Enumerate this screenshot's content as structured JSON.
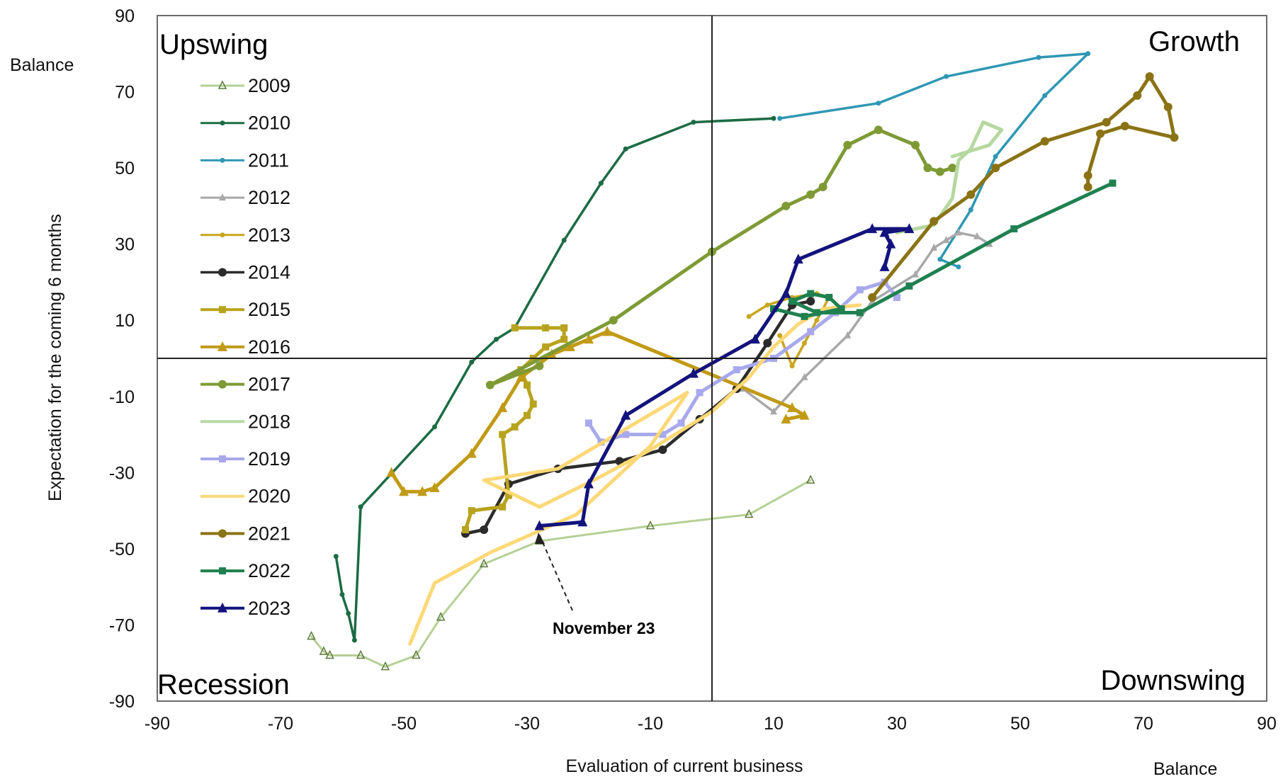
{
  "chart_data": {
    "type": "line",
    "title": "",
    "xlabel": "Evaluation  of current business",
    "ylabel": "Expectation for  the coming 6 months",
    "x_unit_label": "Balance",
    "y_unit_label": "Balance",
    "xlim": [
      -90,
      90
    ],
    "ylim": [
      -90,
      90
    ],
    "xticks": [
      -90,
      -70,
      -50,
      -30,
      -10,
      10,
      30,
      50,
      70,
      90
    ],
    "yticks": [
      90,
      70,
      50,
      30,
      10,
      -10,
      -30,
      -50,
      -70,
      -90
    ],
    "grid": false,
    "reference_lines": {
      "x": 0,
      "y": 0
    },
    "legend_placement": "top-left",
    "quadrants": {
      "top_left": "Upswing",
      "top_right": "Growth",
      "bottom_left": "Recession",
      "bottom_right": "Downswing"
    },
    "annotation": {
      "text": "November 23",
      "x": -28,
      "y": -46
    },
    "series": [
      {
        "name": "2009",
        "color": "#b5cf95",
        "marker": "triangle-open",
        "width": 3,
        "points": [
          [
            -65,
            -73
          ],
          [
            -63,
            -77
          ],
          [
            -62,
            -78
          ],
          [
            -57,
            -78
          ],
          [
            -53,
            -81
          ],
          [
            -48,
            -78
          ],
          [
            -44,
            -68
          ],
          [
            -37,
            -54
          ],
          [
            -28,
            -48
          ],
          [
            -10,
            -44
          ],
          [
            6,
            -41
          ],
          [
            16,
            -32
          ]
        ]
      },
      {
        "name": "2010",
        "color": "#1c6b45",
        "marker": "dot-small",
        "width": 3.5,
        "points": [
          [
            -61,
            -52
          ],
          [
            -60,
            -62
          ],
          [
            -59,
            -67
          ],
          [
            -58,
            -74
          ],
          [
            -57,
            -39
          ],
          [
            -45,
            -18
          ],
          [
            -39,
            -1
          ],
          [
            -35,
            5
          ],
          [
            -32,
            8
          ],
          [
            -24,
            31
          ],
          [
            -18,
            46
          ],
          [
            -14,
            55
          ],
          [
            -3,
            62
          ],
          [
            10,
            63
          ]
        ]
      },
      {
        "name": "2011",
        "color": "#2f97b3",
        "marker": "dot-small",
        "width": 3.5,
        "points": [
          [
            11,
            63
          ],
          [
            27,
            67
          ],
          [
            38,
            74
          ],
          [
            53,
            79
          ],
          [
            61,
            80
          ],
          [
            54,
            69
          ],
          [
            46,
            53
          ],
          [
            42,
            39
          ],
          [
            37,
            26
          ],
          [
            40,
            24
          ]
        ]
      },
      {
        "name": "2012",
        "color": "#a8a8a8",
        "marker": "triangle-small",
        "width": 3.5,
        "points": [
          [
            5,
            -8
          ],
          [
            10,
            -14
          ],
          [
            15,
            -5
          ],
          [
            22,
            6
          ],
          [
            26,
            15
          ],
          [
            33,
            22
          ],
          [
            36,
            29
          ],
          [
            38,
            31
          ],
          [
            40,
            33
          ],
          [
            43,
            32
          ],
          [
            45,
            30
          ]
        ]
      },
      {
        "name": "2013",
        "color": "#c8a61e",
        "marker": "dot-small",
        "width": 3.5,
        "points": [
          [
            6,
            11
          ],
          [
            9,
            14
          ],
          [
            13,
            16
          ],
          [
            17,
            17
          ],
          [
            19,
            16
          ],
          [
            17,
            10
          ],
          [
            15,
            4
          ],
          [
            13,
            -2
          ],
          [
            11,
            6
          ]
        ]
      },
      {
        "name": "2014",
        "color": "#2b2b2b",
        "marker": "dot",
        "width": 4.5,
        "points": [
          [
            -40,
            -46
          ],
          [
            -37,
            -45
          ],
          [
            -33,
            -33
          ],
          [
            -25,
            -29
          ],
          [
            -15,
            -27
          ],
          [
            -8,
            -24
          ],
          [
            -2,
            -16
          ],
          [
            4,
            -8
          ],
          [
            9,
            4
          ],
          [
            13,
            14
          ],
          [
            16,
            15
          ]
        ]
      },
      {
        "name": "2015",
        "color": "#b8a31e",
        "marker": "square",
        "width": 5,
        "points": [
          [
            -40,
            -45
          ],
          [
            -39,
            -40
          ],
          [
            -34,
            -39
          ],
          [
            -33,
            -36
          ],
          [
            -34,
            -20
          ],
          [
            -32,
            -18
          ],
          [
            -30,
            -15
          ],
          [
            -29,
            -12
          ],
          [
            -30,
            -7
          ],
          [
            -31,
            -3
          ],
          [
            -29,
            0
          ],
          [
            -27,
            3
          ],
          [
            -24,
            5
          ],
          [
            -24,
            8
          ],
          [
            -27,
            8
          ],
          [
            -32,
            8
          ]
        ]
      },
      {
        "name": "2016",
        "color": "#c19a16",
        "marker": "triangle",
        "width": 5,
        "points": [
          [
            -52,
            -30
          ],
          [
            -50,
            -35
          ],
          [
            -47,
            -35
          ],
          [
            -45,
            -34
          ],
          [
            -39,
            -25
          ],
          [
            -34,
            -13
          ],
          [
            -31,
            -5
          ],
          [
            -26,
            1
          ],
          [
            -23,
            3
          ],
          [
            -20,
            5
          ],
          [
            -17,
            7
          ],
          [
            13,
            -13
          ],
          [
            15,
            -15
          ],
          [
            12,
            -16
          ]
        ]
      },
      {
        "name": "2017",
        "color": "#7f9a35",
        "marker": "dot",
        "width": 5,
        "points": [
          [
            -28,
            -2
          ],
          [
            -36,
            -7
          ],
          [
            -16,
            10
          ],
          [
            0,
            28
          ],
          [
            12,
            40
          ],
          [
            16,
            43
          ],
          [
            18,
            45
          ],
          [
            22,
            56
          ],
          [
            27,
            60
          ],
          [
            33,
            56
          ],
          [
            35,
            50
          ],
          [
            37,
            49
          ],
          [
            39,
            50
          ]
        ]
      },
      {
        "name": "2018",
        "color": "#b6d8a0",
        "marker": "none",
        "width": 5,
        "points": [
          [
            30,
            33
          ],
          [
            36,
            35
          ],
          [
            39,
            42
          ],
          [
            40,
            52
          ],
          [
            42,
            55
          ],
          [
            44,
            62
          ],
          [
            47,
            60
          ],
          [
            47,
            60
          ],
          [
            45,
            56
          ],
          [
            39,
            53
          ]
        ]
      },
      {
        "name": "2019",
        "color": "#a8a8ec",
        "marker": "square",
        "width": 5,
        "points": [
          [
            -20,
            -17
          ],
          [
            -18,
            -22
          ],
          [
            -14,
            -20
          ],
          [
            -8,
            -20
          ],
          [
            -5,
            -17
          ],
          [
            -2,
            -9
          ],
          [
            4,
            -3
          ],
          [
            10,
            0
          ],
          [
            16,
            7
          ],
          [
            20,
            12
          ],
          [
            24,
            18
          ],
          [
            28,
            20
          ],
          [
            30,
            16
          ]
        ]
      },
      {
        "name": "2020",
        "color": "#fcd876",
        "marker": "none",
        "width": 5,
        "points": [
          [
            -49,
            -75
          ],
          [
            -45,
            -59
          ],
          [
            -36,
            -51
          ],
          [
            -22,
            -41
          ],
          [
            -10,
            -23
          ],
          [
            -4,
            -9
          ],
          [
            -25,
            -29
          ],
          [
            -37,
            -32
          ],
          [
            -28,
            -39
          ],
          [
            -18,
            -31
          ],
          [
            -10,
            -24
          ],
          [
            0,
            -14
          ],
          [
            6,
            -5
          ],
          [
            10,
            3
          ],
          [
            14,
            9
          ],
          [
            18,
            13
          ],
          [
            24,
            14
          ]
        ]
      },
      {
        "name": "2021",
        "color": "#8a7315",
        "marker": "dot",
        "width": 5,
        "points": [
          [
            26,
            16
          ],
          [
            36,
            36
          ],
          [
            42,
            43
          ],
          [
            46,
            50
          ],
          [
            54,
            57
          ],
          [
            64,
            62
          ],
          [
            69,
            69
          ],
          [
            71,
            74
          ],
          [
            74,
            66
          ],
          [
            75,
            58
          ],
          [
            67,
            61
          ],
          [
            63,
            59
          ],
          [
            61,
            48
          ],
          [
            61,
            45
          ]
        ]
      },
      {
        "name": "2022",
        "color": "#1f8050",
        "marker": "square",
        "width": 5,
        "points": [
          [
            65,
            46
          ],
          [
            49,
            34
          ],
          [
            32,
            19
          ],
          [
            24,
            12
          ],
          [
            17,
            12
          ],
          [
            13,
            15
          ],
          [
            16,
            17
          ],
          [
            19,
            16
          ],
          [
            21,
            13
          ],
          [
            15,
            11
          ],
          [
            10,
            13
          ]
        ]
      },
      {
        "name": "2023",
        "color": "#13137d",
        "marker": "triangle",
        "width": 5,
        "points": [
          [
            -28,
            -44
          ],
          [
            -21,
            -43
          ],
          [
            -20,
            -33
          ],
          [
            -14,
            -15
          ],
          [
            -3,
            -4
          ],
          [
            7,
            5
          ],
          [
            12,
            17
          ],
          [
            14,
            26
          ],
          [
            26,
            34
          ],
          [
            32,
            34
          ],
          [
            28,
            33
          ],
          [
            29,
            30
          ],
          [
            28,
            24
          ]
        ]
      }
    ]
  }
}
